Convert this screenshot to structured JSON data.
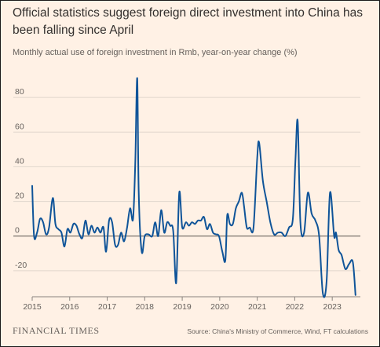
{
  "chart_data": {
    "type": "line",
    "title": "Official statistics suggest foreign direct investment into China has been falling since April",
    "subtitle": "Monthly actual use of foreign investment in Rmb, year-on-year change (%)",
    "xlabel": "",
    "ylabel": "",
    "ylim": [
      -35,
      95
    ],
    "xlim": [
      2015.0,
      2023.75
    ],
    "y_ticks": [
      80,
      60,
      40,
      20,
      0,
      -20
    ],
    "x_ticks": [
      "2015",
      "2016",
      "2017",
      "2018",
      "2019",
      "2020",
      "2021",
      "2022",
      "2023"
    ],
    "grid": true,
    "colors": {
      "line": "#0f5499",
      "grid": "#e0d6cc",
      "zero_line": "#5a5550",
      "background": "#fff1e5"
    },
    "series": [
      {
        "values": [
          [
            2015.0,
            29
          ],
          [
            2015.05,
            0
          ],
          [
            2015.13,
            2
          ],
          [
            2015.21,
            10
          ],
          [
            2015.29,
            8
          ],
          [
            2015.37,
            1
          ],
          [
            2015.45,
            5
          ],
          [
            2015.55,
            22
          ],
          [
            2015.62,
            7
          ],
          [
            2015.7,
            4
          ],
          [
            2015.78,
            2
          ],
          [
            2015.86,
            -6
          ],
          [
            2015.94,
            4
          ],
          [
            2016.02,
            2
          ],
          [
            2016.1,
            7
          ],
          [
            2016.18,
            6
          ],
          [
            2016.26,
            1
          ],
          [
            2016.34,
            -1
          ],
          [
            2016.42,
            9
          ],
          [
            2016.5,
            1
          ],
          [
            2016.58,
            6
          ],
          [
            2016.66,
            2
          ],
          [
            2016.74,
            5
          ],
          [
            2016.82,
            2
          ],
          [
            2016.9,
            5
          ],
          [
            2016.97,
            -9
          ],
          [
            2017.05,
            9
          ],
          [
            2017.13,
            8
          ],
          [
            2017.21,
            -5
          ],
          [
            2017.29,
            -5
          ],
          [
            2017.37,
            2
          ],
          [
            2017.45,
            -3
          ],
          [
            2017.53,
            5
          ],
          [
            2017.61,
            16
          ],
          [
            2017.69,
            10
          ],
          [
            2017.75,
            44
          ],
          [
            2017.8,
            91
          ],
          [
            2017.84,
            25
          ],
          [
            2017.92,
            -9
          ],
          [
            2018.0,
            0
          ],
          [
            2018.1,
            1
          ],
          [
            2018.2,
            0
          ],
          [
            2018.28,
            8
          ],
          [
            2018.36,
            0
          ],
          [
            2018.44,
            15
          ],
          [
            2018.52,
            2
          ],
          [
            2018.6,
            8
          ],
          [
            2018.68,
            6
          ],
          [
            2018.76,
            3
          ],
          [
            2018.84,
            -27
          ],
          [
            2018.92,
            25
          ],
          [
            2019.0,
            5
          ],
          [
            2019.1,
            8
          ],
          [
            2019.18,
            6
          ],
          [
            2019.26,
            8
          ],
          [
            2019.34,
            7
          ],
          [
            2019.42,
            9
          ],
          [
            2019.5,
            9
          ],
          [
            2019.58,
            11
          ],
          [
            2019.66,
            4
          ],
          [
            2019.74,
            7
          ],
          [
            2019.82,
            2
          ],
          [
            2019.9,
            1
          ],
          [
            2019.98,
            0
          ],
          [
            2020.07,
            -9
          ],
          [
            2020.15,
            -14
          ],
          [
            2020.2,
            12
          ],
          [
            2020.27,
            7
          ],
          [
            2020.35,
            7
          ],
          [
            2020.43,
            16
          ],
          [
            2020.51,
            20
          ],
          [
            2020.59,
            25
          ],
          [
            2020.65,
            17
          ],
          [
            2020.72,
            5
          ],
          [
            2020.8,
            5
          ],
          [
            2020.9,
            5
          ],
          [
            2021.0,
            45
          ],
          [
            2021.05,
            54
          ],
          [
            2021.15,
            32
          ],
          [
            2021.25,
            20
          ],
          [
            2021.35,
            8
          ],
          [
            2021.45,
            1
          ],
          [
            2021.55,
            2
          ],
          [
            2021.65,
            2
          ],
          [
            2021.75,
            0
          ],
          [
            2021.85,
            5
          ],
          [
            2021.95,
            10
          ],
          [
            2022.02,
            45
          ],
          [
            2022.08,
            66
          ],
          [
            2022.15,
            8
          ],
          [
            2022.25,
            2
          ],
          [
            2022.35,
            25
          ],
          [
            2022.45,
            13
          ],
          [
            2022.55,
            9
          ],
          [
            2022.65,
            0
          ],
          [
            2022.75,
            -33
          ],
          [
            2022.85,
            -26
          ],
          [
            2022.94,
            25
          ],
          [
            2023.05,
            0
          ],
          [
            2023.1,
            2
          ],
          [
            2023.17,
            -8
          ],
          [
            2023.25,
            -11
          ],
          [
            2023.35,
            -19
          ],
          [
            2023.45,
            -16
          ],
          [
            2023.55,
            -15
          ],
          [
            2023.62,
            -34
          ]
        ]
      }
    ],
    "source": "Source: China's Ministry of Commerce, Wind, FT calculations",
    "brand": "FINANCIAL TIMES"
  }
}
